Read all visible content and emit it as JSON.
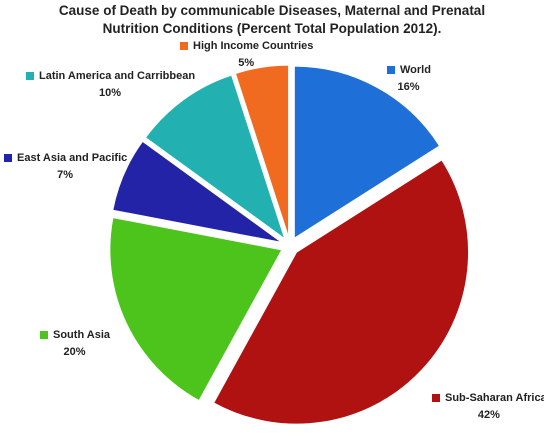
{
  "chart_data": {
    "type": "pie",
    "title": "Cause of Death by communicable Diseases, Maternal and Prenatal Nutrition Conditions (Percent Total Population 2012).",
    "categories": [
      "World",
      "Sub-Saharan Africa",
      "South Asia",
      "East Asia and Pacific",
      "Latin America and Carribbean",
      "High Income Countries"
    ],
    "values": [
      16,
      42,
      20,
      7,
      10,
      5
    ],
    "value_labels": [
      "16%",
      "42%",
      "20%",
      "7%",
      "10%",
      "5%"
    ],
    "colors": [
      "#1f6fd8",
      "#b01212",
      "#4cc41c",
      "#2323a8",
      "#22b0b0",
      "#f06a20"
    ]
  }
}
